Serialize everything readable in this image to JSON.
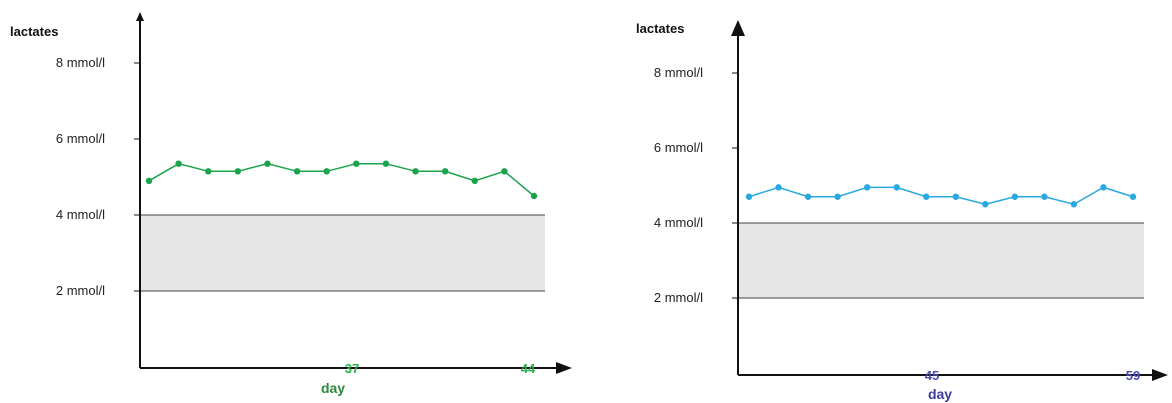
{
  "chart_data": [
    {
      "type": "line",
      "ylabel": "lactates",
      "xlabel": "day",
      "y_ticks": [
        {
          "value": 2,
          "label": "2 mmol/l"
        },
        {
          "value": 4,
          "label": "4 mmol/l"
        },
        {
          "value": 6,
          "label": "6 mmol/l"
        },
        {
          "value": 8,
          "label": "8 mmol/l"
        }
      ],
      "x_ticks": [
        "37",
        "44"
      ],
      "reference_band": [
        2,
        4
      ],
      "series": [
        {
          "color": "#1aa34a",
          "values": [
            4.9,
            5.35,
            5.15,
            5.15,
            5.35,
            5.15,
            5.15,
            5.35,
            5.35,
            5.15,
            5.15,
            4.9,
            5.15,
            4.5
          ]
        }
      ],
      "colors": {
        "x_ticks": "#2db24a",
        "xlabel": "#2a8a3a",
        "band": "#e6e6e6",
        "line": "#1aa34a"
      }
    },
    {
      "type": "line",
      "ylabel": "lactates",
      "xlabel": "day",
      "y_ticks": [
        {
          "value": 2,
          "label": "2 mmol/l"
        },
        {
          "value": 4,
          "label": "4 mmol/l"
        },
        {
          "value": 6,
          "label": "6 mmol/l"
        },
        {
          "value": 8,
          "label": "8 mmol/l"
        }
      ],
      "x_ticks": [
        "45",
        "59"
      ],
      "reference_band": [
        2,
        4
      ],
      "series": [
        {
          "color": "#29a9e0",
          "values": [
            4.7,
            4.95,
            4.7,
            4.7,
            4.95,
            4.95,
            4.7,
            4.7,
            4.5,
            4.7,
            4.7,
            4.5,
            4.95,
            4.7
          ]
        }
      ],
      "colors": {
        "x_ticks": "#4a4ab8",
        "xlabel": "#3a3aa0",
        "band": "#e6e6e6",
        "line": "#29a9e0"
      }
    }
  ]
}
